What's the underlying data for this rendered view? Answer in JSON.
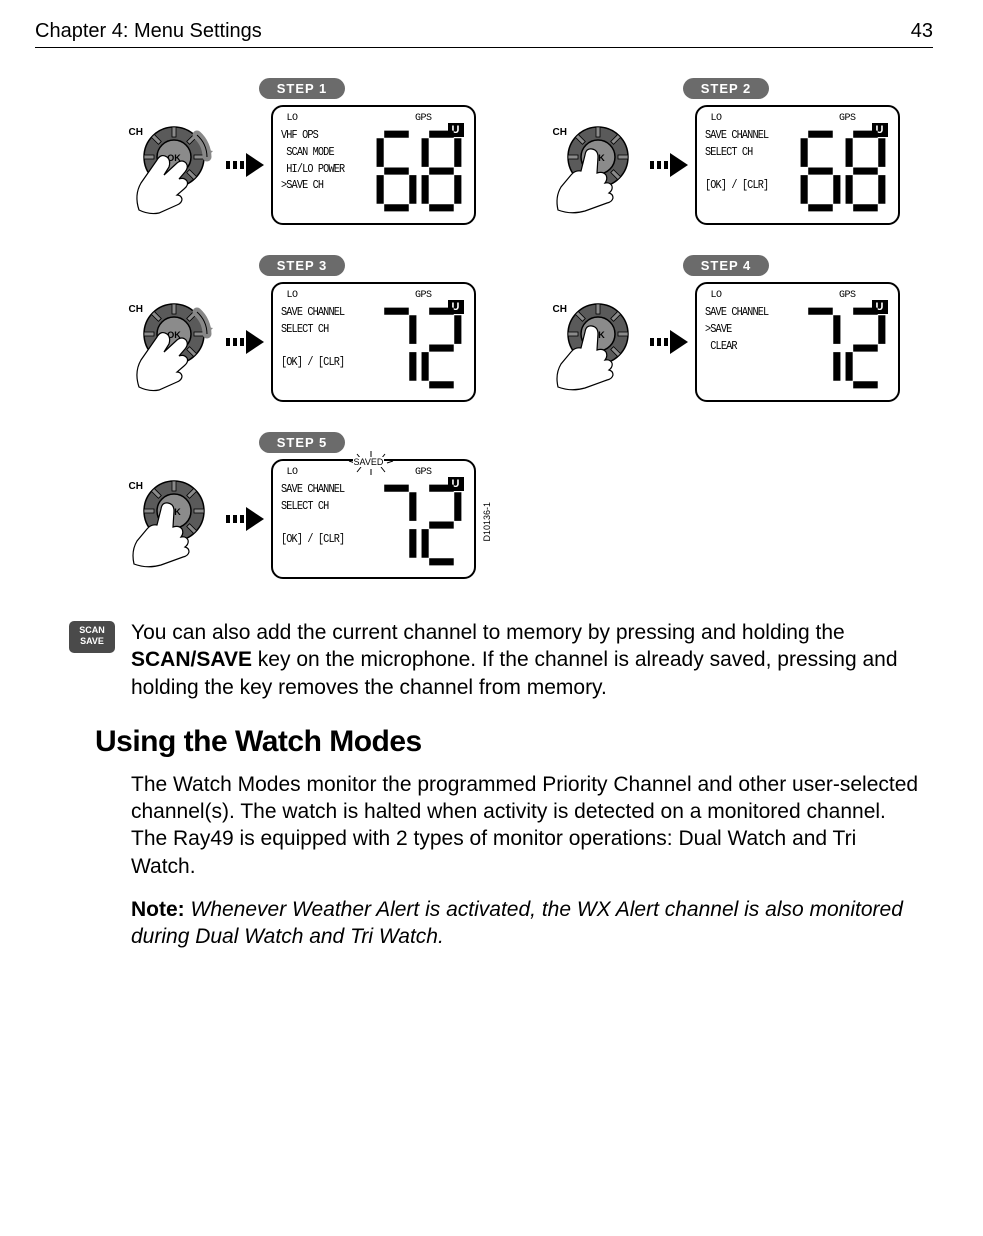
{
  "header": {
    "chapter": "Chapter 4: Menu Settings",
    "page": "43"
  },
  "steps": [
    {
      "badge": "STEP  1",
      "ch": "CH",
      "knob_action": "rotate",
      "screen": {
        "lo": "LO",
        "gps": "GPS",
        "u": "U",
        "menu": "VHF OPS\n SCAN MODE\n HI/LO POWER\n>SAVE CH",
        "digits": "68"
      }
    },
    {
      "badge": "STEP  2",
      "ch": "CH",
      "knob_action": "press",
      "screen": {
        "lo": "LO",
        "gps": "GPS",
        "u": "U",
        "menu": "SAVE CHANNEL\nSELECT CH\n\n[OK] / [CLR]",
        "digits": "68"
      }
    },
    {
      "badge": "STEP  3",
      "ch": "CH",
      "knob_action": "rotate",
      "screen": {
        "lo": "LO",
        "gps": "GPS",
        "u": "U",
        "menu": "SAVE CHANNEL\nSELECT CH\n\n[OK] / [CLR]",
        "digits": "72"
      }
    },
    {
      "badge": "STEP  4",
      "ch": "CH",
      "knob_action": "press",
      "screen": {
        "lo": "LO",
        "gps": "GPS",
        "u": "U",
        "menu": "SAVE CHANNEL\n>SAVE\n CLEAR",
        "digits": "72"
      }
    },
    {
      "badge": "STEP  5",
      "ch": "CH",
      "knob_action": "press",
      "saved": "SAVED",
      "screen": {
        "lo": "LO",
        "gps": "GPS",
        "u": "U",
        "menu": "SAVE CHANNEL\nSELECT CH\n\n[OK] / [CLR]",
        "digits": "72"
      },
      "diagram_id": "D10136-1"
    }
  ],
  "scan_save_button": {
    "line1": "SCAN",
    "line2": "SAVE"
  },
  "paragraph1_a": "You can also add the current channel to memory by pressing and holding the ",
  "paragraph1_bold": "SCAN/SAVE",
  "paragraph1_b": " key on the microphone. If the channel is already saved, pressing and holding the key removes the channel from memory.",
  "heading": "Using the Watch Modes",
  "paragraph2": "The Watch Modes monitor the programmed Priority Channel and other user-selected channel(s). The watch is halted when activity is detected on a monitored channel. The Ray49 is equipped with 2 types of monitor operations: Dual Watch and Tri Watch.",
  "note_label": "Note:  ",
  "note_text": "Whenever Weather Alert is activated, the WX Alert channel is also monitored during Dual Watch and Tri Watch.",
  "colors": {
    "badge_bg": "#6b6b6b",
    "button_bg": "#4a4a4a",
    "knob_outer": "#5a5a5a",
    "knob_inner": "#8b8b8b"
  }
}
